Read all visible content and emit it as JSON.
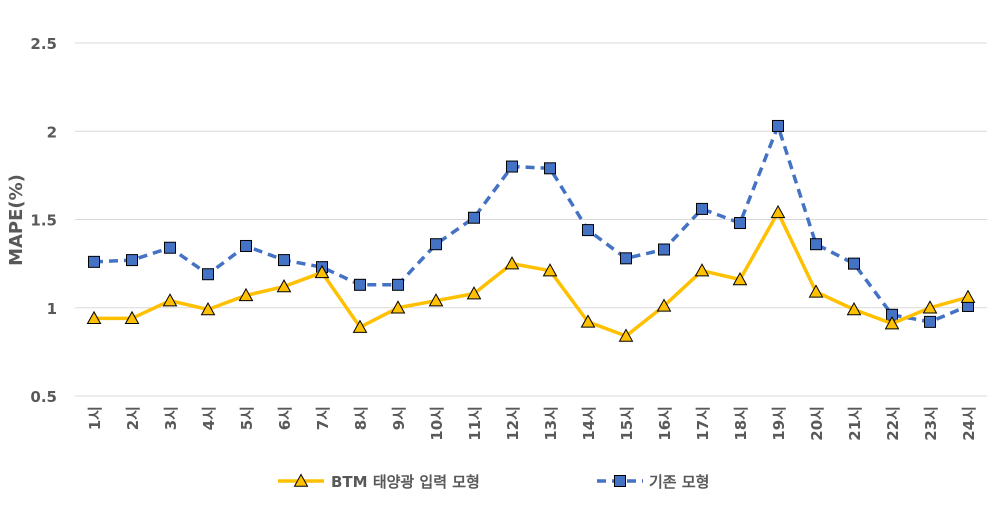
{
  "chart_data": {
    "type": "line",
    "ylabel": "MAPE(%)",
    "xlabel": "",
    "ylim": [
      0.5,
      2.5
    ],
    "yticks": [
      "0.5",
      "1",
      "1.5",
      "2",
      "2.5"
    ],
    "grid": "horizontal",
    "legend_position": "bottom",
    "categories": [
      "1시",
      "2시",
      "3시",
      "4시",
      "5시",
      "6시",
      "7시",
      "8시",
      "9시",
      "10시",
      "11시",
      "12시",
      "13시",
      "14시",
      "15시",
      "16시",
      "17시",
      "18시",
      "19시",
      "20시",
      "21시",
      "22시",
      "23시",
      "24시"
    ],
    "series": [
      {
        "name": "BTM 태양광 입력 모형",
        "color": "#FFC000",
        "line_style": "solid",
        "marker": "triangle",
        "values": [
          0.94,
          0.94,
          1.04,
          0.99,
          1.07,
          1.12,
          1.2,
          0.89,
          1.0,
          1.04,
          1.08,
          1.25,
          1.21,
          0.92,
          0.84,
          1.01,
          1.21,
          1.16,
          1.54,
          1.09,
          0.99,
          0.91,
          1.0,
          1.06
        ]
      },
      {
        "name": "기존 모형",
        "color": "#4472C4",
        "line_style": "dashed",
        "marker": "square",
        "values": [
          1.26,
          1.27,
          1.34,
          1.19,
          1.35,
          1.27,
          1.23,
          1.13,
          1.13,
          1.36,
          1.51,
          1.8,
          1.79,
          1.44,
          1.28,
          1.33,
          1.56,
          1.48,
          2.03,
          1.36,
          1.25,
          0.96,
          0.92,
          1.01
        ]
      }
    ]
  }
}
